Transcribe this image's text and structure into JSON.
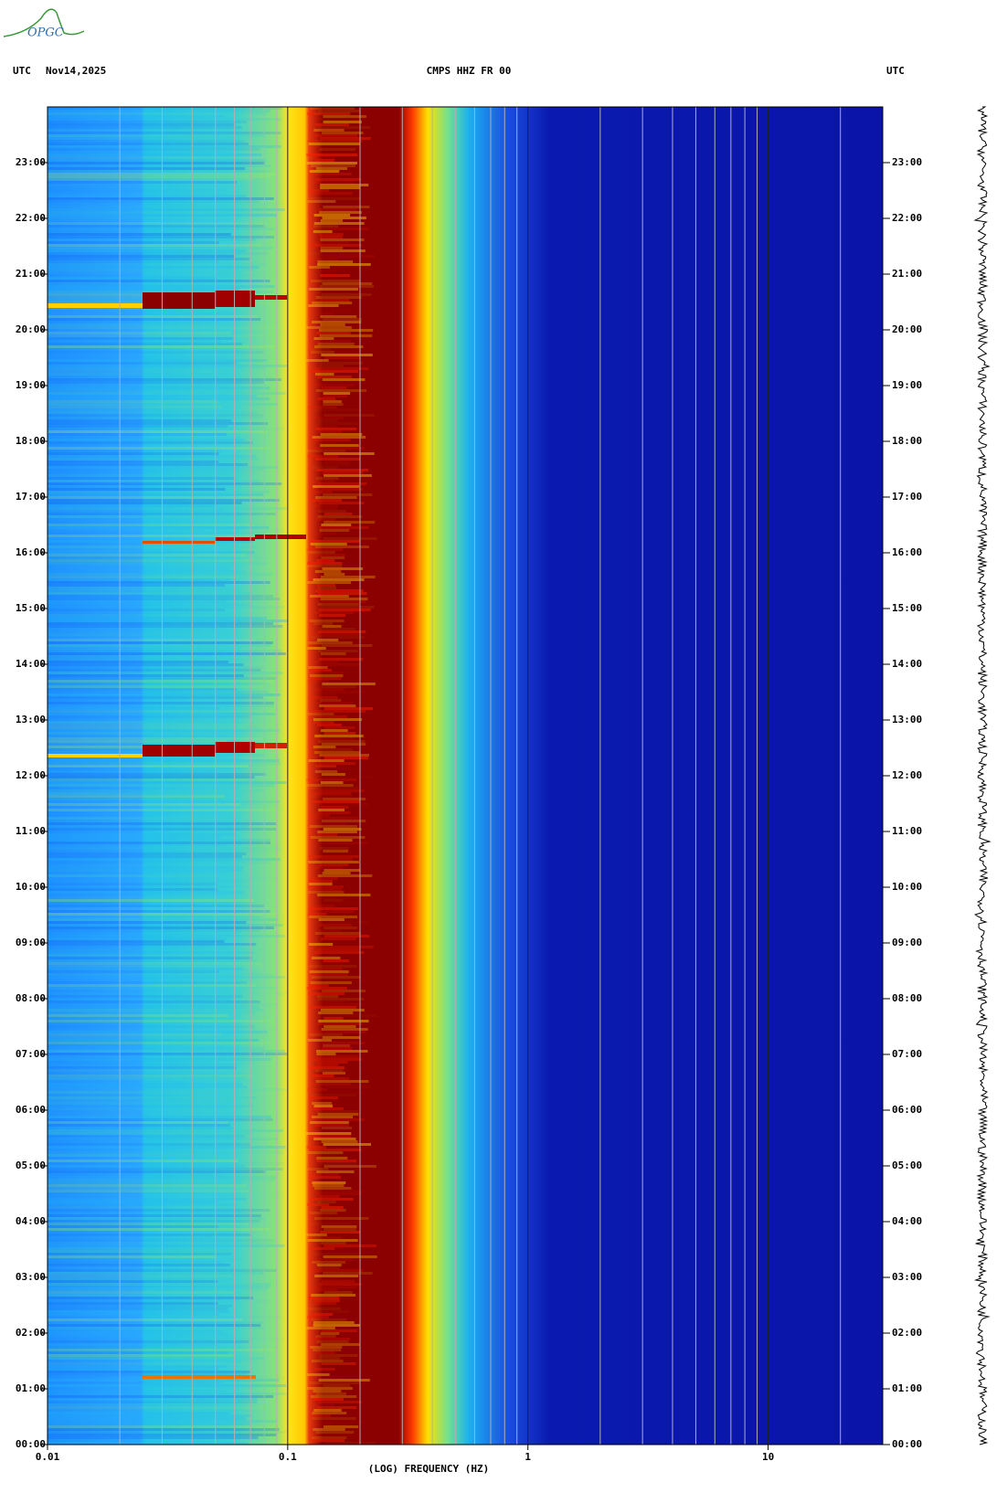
{
  "chart_data": {
    "type": "spectrogram",
    "header_left": "UTC",
    "date": "Nov14,2025",
    "title": "CMPS HHZ FR 00",
    "header_right": "UTC",
    "logo": "OPGC",
    "xlabel": "(LOG) FREQUENCY (HZ)",
    "xscale": "log",
    "xlim": [
      0.01,
      30
    ],
    "xticks": [
      0.01,
      0.1,
      1,
      10
    ],
    "xminorticks": [
      0.02,
      0.03,
      0.04,
      0.05,
      0.06,
      0.07,
      0.08,
      0.09,
      0.2,
      0.3,
      0.4,
      0.5,
      0.6,
      0.7,
      0.8,
      0.9,
      2,
      3,
      4,
      5,
      6,
      7,
      8,
      9,
      20
    ],
    "ylim": [
      0,
      24
    ],
    "yticks": [
      {
        "value": 0,
        "label": "00:00"
      },
      {
        "value": 1,
        "label": "01:00"
      },
      {
        "value": 2,
        "label": "02:00"
      },
      {
        "value": 3,
        "label": "03:00"
      },
      {
        "value": 4,
        "label": "04:00"
      },
      {
        "value": 5,
        "label": "05:00"
      },
      {
        "value": 6,
        "label": "06:00"
      },
      {
        "value": 7,
        "label": "07:00"
      },
      {
        "value": 8,
        "label": "08:00"
      },
      {
        "value": 9,
        "label": "09:00"
      },
      {
        "value": 10,
        "label": "10:00"
      },
      {
        "value": 11,
        "label": "11:00"
      },
      {
        "value": 12,
        "label": "12:00"
      },
      {
        "value": 13,
        "label": "13:00"
      },
      {
        "value": 14,
        "label": "14:00"
      },
      {
        "value": 15,
        "label": "15:00"
      },
      {
        "value": 16,
        "label": "16:00"
      },
      {
        "value": 17,
        "label": "17:00"
      },
      {
        "value": 18,
        "label": "18:00"
      },
      {
        "value": 19,
        "label": "19:00"
      },
      {
        "value": 20,
        "label": "20:00"
      },
      {
        "value": 21,
        "label": "21:00"
      },
      {
        "value": 22,
        "label": "22:00"
      },
      {
        "value": 23,
        "label": "23:00"
      }
    ],
    "grid": true
  }
}
